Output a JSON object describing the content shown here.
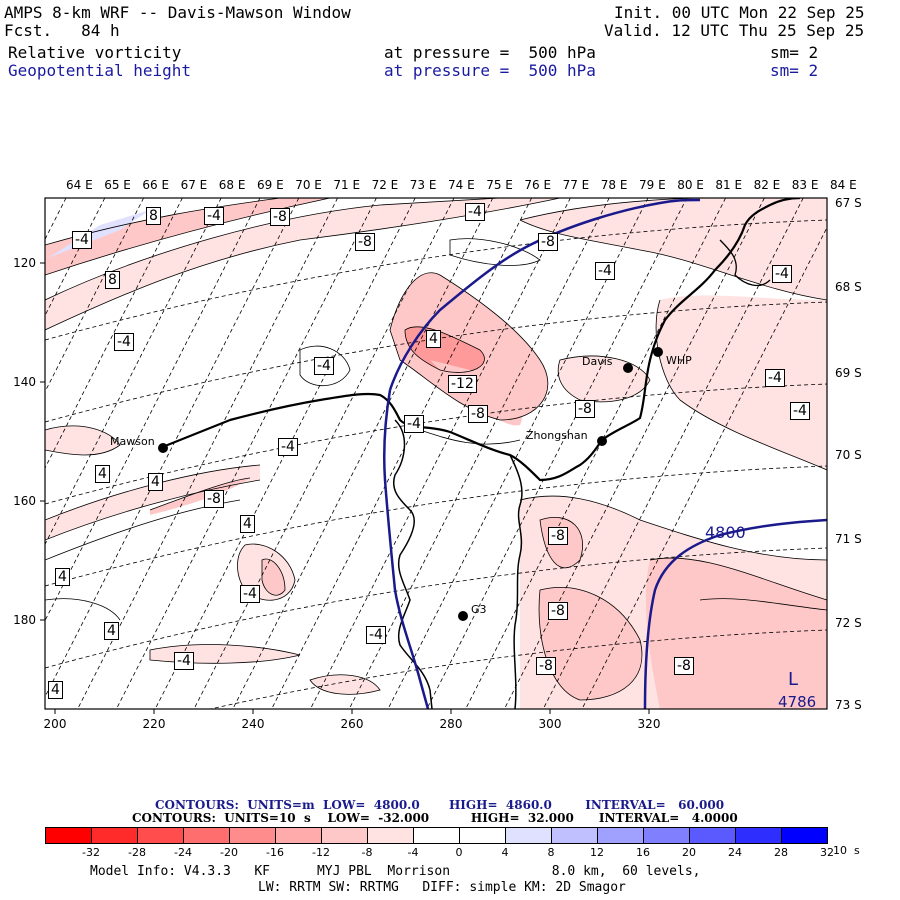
{
  "header": {
    "title": "AMPS 8-km WRF -- Davis-Mawson Window",
    "forecast": "Fcst.   84 h",
    "init": "Init. 00 UTC Mon 22 Sep 25",
    "valid": "Valid. 12 UTC Thu 25 Sep 25",
    "field1": {
      "name": "Relative vorticity",
      "level": "at pressure =  500 hPa",
      "smooth": "sm= 2"
    },
    "field2": {
      "name": "Geopotential height",
      "level": "at pressure =  500 hPa",
      "smooth": "sm= 2"
    }
  },
  "map": {
    "lon_labels": [
      "64 E",
      "65 E",
      "66 E",
      "67 E",
      "68 E",
      "69 E",
      "70 E",
      "71 E",
      "72 E",
      "73 E",
      "74 E",
      "75 E",
      "76 E",
      "77 E",
      "78 E",
      "79 E",
      "80 E",
      "81 E",
      "82 E",
      "83 E",
      "84 E"
    ],
    "lat_labels": [
      "67 S",
      "68 S",
      "69 S",
      "70 S",
      "71 S",
      "72 S",
      "73 S"
    ],
    "x_ticks": [
      "200",
      "220",
      "240",
      "260",
      "280",
      "300",
      "320"
    ],
    "y_ticks": [
      "120",
      "140",
      "160",
      "180"
    ],
    "stations": [
      {
        "name": "Mawson"
      },
      {
        "name": "Davis"
      },
      {
        "name": "WHP"
      },
      {
        "name": "Zhongshan"
      },
      {
        "name": "G3"
      }
    ],
    "vorticity_labels": [
      "8",
      "-4",
      "-8",
      "-4",
      "8",
      "-8",
      "-4",
      "-8",
      "-4",
      "-4",
      "-4",
      "-4",
      "4",
      "-12",
      "-8",
      "-8",
      "-4",
      "-4",
      "-4",
      "-4",
      "4",
      "4",
      "-8",
      "4",
      "-4",
      "4",
      "4",
      "-4",
      "4",
      "-4",
      "-8",
      "-8",
      "-8"
    ],
    "height_labels": [
      "4800"
    ],
    "low_marker": {
      "letter": "L",
      "value": "4786"
    }
  },
  "contours_info": {
    "line1": "CONTOURS:  UNITS=m  LOW=  4800.0       HIGH=  4860.0        INTERVAL=   60.000",
    "line2": "CONTOURS:  UNITS=10  s    LOW=  -32.000          HIGH=  32.000      INTERVAL=   4.0000"
  },
  "colorbar": {
    "colors": [
      "#ff0000",
      "#ff2a2a",
      "#ff4d4d",
      "#ff6e6e",
      "#ff8c8c",
      "#ffabab",
      "#ffc8c8",
      "#ffe2e2",
      "#ffffff",
      "#ffffff",
      "#e0e0ff",
      "#c0c0ff",
      "#a0a0ff",
      "#8080ff",
      "#5a5aff",
      "#2e2eff",
      "#0000ff"
    ],
    "ticks": [
      "-32",
      "-28",
      "-24",
      "-20",
      "-16",
      "-12",
      "-8",
      "-4",
      "0",
      "4",
      "8",
      "12",
      "16",
      "20",
      "24",
      "28",
      "32"
    ],
    "units": "10  s"
  },
  "model_info": {
    "line1": "Model Info: V4.3.3   KF      MYJ PBL  Morrison             8.0 km,  60 levels,",
    "line2": "LW: RRTM SW: RRTMG   DIFF: simple KM: 2D Smagor"
  }
}
